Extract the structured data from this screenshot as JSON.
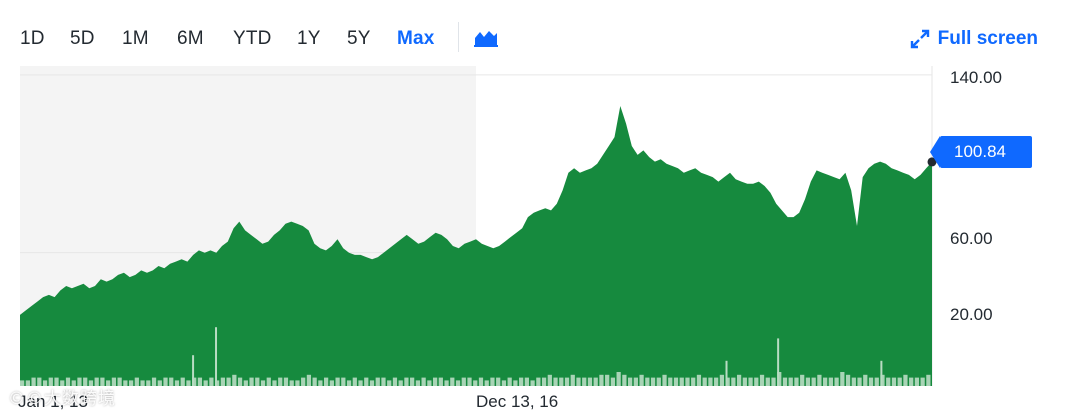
{
  "toolbar": {
    "ranges": [
      "1D",
      "5D",
      "1M",
      "6M",
      "YTD",
      "1Y",
      "5Y",
      "Max"
    ],
    "active_range": "Max",
    "chart_type_icon": "mountain-chart-icon",
    "fullscreen_label": "Full screen",
    "fullscreen_icon": "expand-arrows-icon"
  },
  "colors": {
    "accent": "#0f69ff",
    "area_fill": "#168a3e",
    "volume": "#2a9a4b",
    "shaded_band": "#f4f4f4",
    "grid": "#e6e6e6",
    "text": "#232a31"
  },
  "watermark": "©©大数跨境",
  "chart_data": {
    "type": "area",
    "title": "",
    "x_tick_labels": [
      "Jan 1, 13",
      "Dec 13, 16"
    ],
    "y_tick_labels": [
      "140.00",
      "60.00",
      "20.00"
    ],
    "y_ticks": [
      140,
      60,
      20
    ],
    "ylim": [
      0,
      144
    ],
    "grid": true,
    "current_price": 100.84,
    "current_price_label": "100.84",
    "series": [
      {
        "values": [
          32,
          34,
          36,
          38,
          40,
          41,
          40,
          43,
          45,
          44,
          45,
          46,
          44,
          45,
          48,
          47,
          48,
          50,
          51,
          49,
          50,
          52,
          51,
          52,
          54,
          53,
          55,
          56,
          57,
          56,
          59,
          61,
          60,
          61,
          60,
          63,
          65,
          71,
          74,
          70,
          68,
          66,
          64,
          65,
          68,
          70,
          73,
          74,
          73,
          72,
          70,
          64,
          62,
          61,
          63,
          66,
          62,
          60,
          59,
          59,
          58,
          57,
          58,
          60,
          62,
          64,
          66,
          68,
          66,
          64,
          65,
          67,
          69,
          68,
          66,
          63,
          62,
          64,
          65,
          66,
          64,
          63,
          62,
          63,
          65,
          67,
          69,
          71,
          76,
          78,
          79,
          80,
          79,
          82,
          88,
          96,
          98,
          96,
          97,
          98,
          100,
          104,
          108,
          112,
          126,
          118,
          108,
          104,
          106,
          103,
          101,
          102,
          100,
          99,
          98,
          96,
          97,
          98,
          96,
          95,
          94,
          92,
          94,
          96,
          93,
          92,
          91,
          91,
          92,
          90,
          87,
          82,
          79,
          76,
          76,
          78,
          84,
          92,
          97,
          96,
          95,
          94,
          93,
          96,
          88,
          72,
          94,
          98,
          100,
          101,
          100,
          98,
          97,
          96,
          95,
          93,
          95,
          98,
          100.84
        ]
      }
    ],
    "volume": [
      2,
      2,
      3,
      3,
      2,
      3,
      3,
      2,
      3,
      2,
      3,
      3,
      2,
      3,
      3,
      2,
      3,
      3,
      2,
      2,
      3,
      2,
      2,
      3,
      2,
      3,
      3,
      2,
      3,
      2,
      3,
      3,
      2,
      3,
      2,
      3,
      3,
      4,
      3,
      2,
      3,
      3,
      2,
      3,
      2,
      3,
      3,
      2,
      2,
      3,
      4,
      3,
      2,
      3,
      2,
      3,
      3,
      2,
      3,
      2,
      3,
      2,
      3,
      3,
      2,
      3,
      2,
      3,
      3,
      2,
      3,
      2,
      3,
      3,
      2,
      3,
      2,
      3,
      3,
      2,
      3,
      2,
      3,
      3,
      2,
      3,
      2,
      3,
      3,
      2,
      3,
      3,
      4,
      3,
      3,
      3,
      4,
      3,
      3,
      3,
      3,
      4,
      4,
      3,
      5,
      4,
      3,
      3,
      4,
      3,
      3,
      3,
      4,
      3,
      3,
      3,
      3,
      3,
      4,
      3,
      3,
      3,
      4,
      3,
      3,
      4,
      3,
      3,
      3,
      4,
      3,
      3,
      5,
      3,
      3,
      3,
      4,
      3,
      3,
      4,
      3,
      3,
      3,
      5,
      4,
      3,
      3,
      4,
      3,
      3,
      4,
      3,
      3,
      3,
      4,
      3,
      3,
      3,
      4
    ],
    "volume_spikes": [
      {
        "index": 30,
        "value": 11
      },
      {
        "index": 34,
        "value": 21
      },
      {
        "index": 123,
        "value": 9
      },
      {
        "index": 132,
        "value": 17
      },
      {
        "index": 150,
        "value": 9
      }
    ]
  }
}
